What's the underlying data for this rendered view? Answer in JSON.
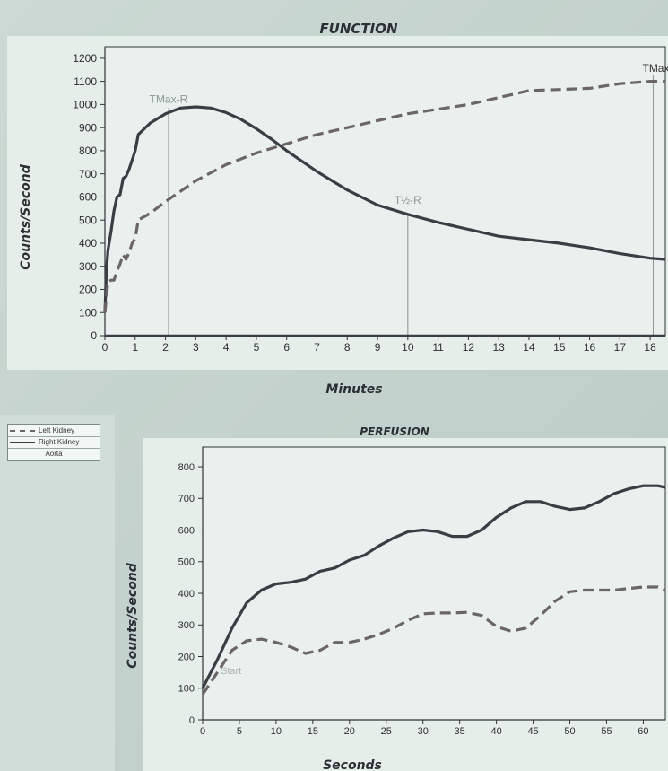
{
  "legend": {
    "items": [
      {
        "label": "Left Kidney",
        "style": "dashed"
      },
      {
        "label": "Right Kidney",
        "style": "solid"
      },
      {
        "label": "Aorta",
        "style": "none"
      }
    ]
  },
  "colors": {
    "right_kidney": "#3a3d44",
    "left_kidney": "#6c6568",
    "marker": "#8a9792",
    "axis": "#2e3236"
  },
  "chart_data": [
    {
      "type": "line",
      "title": "FUNCTION",
      "xlabel": "Minutes",
      "ylabel": "Counts/Second",
      "xlim": [
        0,
        18.5
      ],
      "ylim": [
        0,
        1250
      ],
      "xticks": [
        0,
        1,
        2,
        3,
        4,
        5,
        6,
        7,
        8,
        9,
        10,
        11,
        12,
        13,
        14,
        15,
        16,
        17,
        18
      ],
      "yticks": [
        0,
        100,
        200,
        300,
        400,
        500,
        600,
        700,
        800,
        900,
        1000,
        1100,
        1200
      ],
      "grid": false,
      "markers": [
        {
          "label": "TMax-R",
          "x": 2.1
        },
        {
          "label": "T½-R",
          "x": 10
        },
        {
          "label": "TMax-",
          "x": 18.1
        }
      ],
      "series": [
        {
          "name": "Right Kidney",
          "style": "solid",
          "x": [
            0,
            0.05,
            0.1,
            0.2,
            0.3,
            0.4,
            0.5,
            0.6,
            0.7,
            0.8,
            0.9,
            1.0,
            1.1,
            1.5,
            2,
            2.5,
            3,
            3.5,
            4,
            4.5,
            5,
            5.5,
            6,
            7,
            8,
            9,
            10,
            11,
            12,
            13,
            14,
            15,
            16,
            17,
            18,
            18.5
          ],
          "values": [
            100,
            280,
            370,
            450,
            540,
            600,
            610,
            680,
            690,
            720,
            760,
            800,
            870,
            920,
            960,
            985,
            990,
            985,
            965,
            935,
            895,
            850,
            800,
            710,
            630,
            565,
            525,
            490,
            460,
            430,
            415,
            400,
            380,
            355,
            335,
            330
          ]
        },
        {
          "name": "Left Kidney",
          "style": "dashed",
          "x": [
            0,
            0.1,
            0.2,
            0.3,
            0.4,
            0.5,
            0.6,
            0.7,
            0.8,
            0.9,
            1.0,
            1.1,
            1.5,
            2,
            3,
            4,
            5,
            6,
            7,
            8,
            9,
            10,
            11,
            12,
            13,
            14,
            15,
            16,
            17,
            18,
            18.5
          ],
          "values": [
            100,
            230,
            240,
            240,
            280,
            310,
            350,
            330,
            360,
            400,
            420,
            500,
            530,
            580,
            670,
            740,
            790,
            830,
            870,
            900,
            930,
            960,
            980,
            1000,
            1030,
            1060,
            1065,
            1070,
            1090,
            1100,
            1100
          ]
        },
        {
          "name": "Aorta",
          "style": "solid",
          "x": [
            0,
            18.5
          ],
          "values": [
            0,
            0
          ]
        }
      ]
    },
    {
      "type": "line",
      "title": "PERFUSION",
      "xlabel": "Seconds",
      "ylabel": "Counts/Second",
      "xlim": [
        0,
        63
      ],
      "ylim": [
        0,
        820
      ],
      "xticks": [
        0,
        5,
        10,
        15,
        20,
        25,
        30,
        35,
        40,
        45,
        50,
        55,
        60
      ],
      "yticks": [
        0,
        100,
        200,
        300,
        400,
        500,
        600,
        700,
        800
      ],
      "grid": false,
      "annotation": "Start",
      "series": [
        {
          "name": "Right Kidney",
          "style": "solid",
          "x": [
            0,
            2,
            4,
            6,
            8,
            10,
            12,
            14,
            16,
            18,
            20,
            22,
            24,
            26,
            28,
            30,
            32,
            34,
            36,
            38,
            40,
            42,
            44,
            46,
            48,
            50,
            52,
            54,
            56,
            58,
            60,
            62,
            63
          ],
          "values": [
            100,
            190,
            290,
            370,
            410,
            430,
            435,
            445,
            470,
            480,
            505,
            520,
            550,
            575,
            595,
            600,
            595,
            580,
            580,
            600,
            640,
            670,
            690,
            690,
            675,
            665,
            670,
            690,
            715,
            730,
            740,
            740,
            735
          ]
        },
        {
          "name": "Left Kidney",
          "style": "dashed",
          "x": [
            0,
            2,
            4,
            6,
            8,
            10,
            12,
            14,
            16,
            18,
            20,
            22,
            24,
            26,
            28,
            30,
            32,
            34,
            36,
            38,
            40,
            42,
            44,
            46,
            48,
            50,
            52,
            54,
            56,
            58,
            60,
            62,
            63
          ],
          "values": [
            80,
            150,
            220,
            250,
            255,
            245,
            230,
            210,
            220,
            245,
            245,
            255,
            270,
            290,
            315,
            335,
            338,
            338,
            340,
            330,
            295,
            280,
            290,
            330,
            375,
            405,
            410,
            410,
            410,
            415,
            420,
            420,
            410
          ]
        }
      ]
    }
  ]
}
